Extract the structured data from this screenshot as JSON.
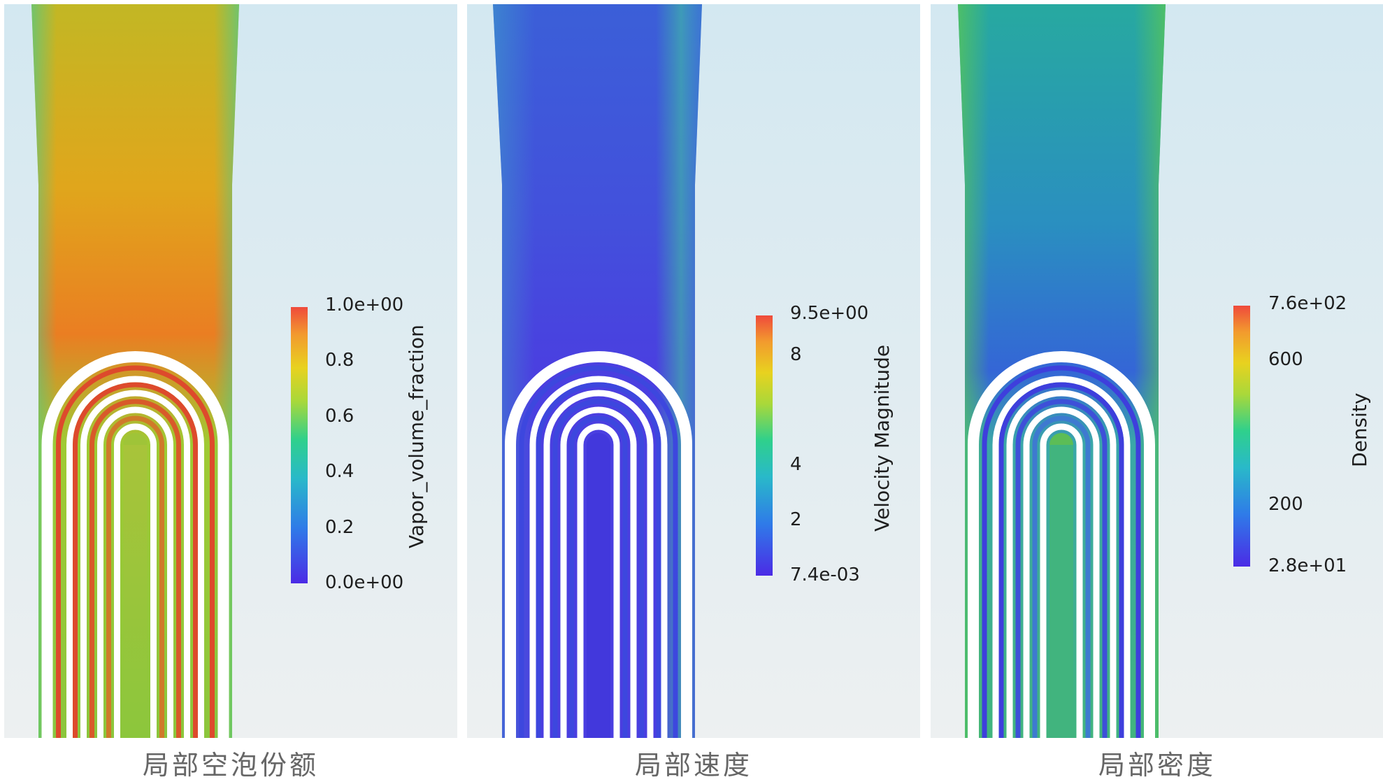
{
  "panels": [
    {
      "caption": "局部空泡份额",
      "colorbar": {
        "title": "Vapor_volume_fraction",
        "max_label": "1.0e+00",
        "min_label": "0.0e+00",
        "ticks": [
          "0.8",
          "0.6",
          "0.4",
          "0.2"
        ]
      }
    },
    {
      "caption": "局部速度",
      "colorbar": {
        "title": "Velocity Magnitude",
        "max_label": "9.5e+00",
        "min_label": "7.4e-03",
        "ticks": [
          "8",
          "4",
          "2"
        ]
      }
    },
    {
      "caption": "局部密度",
      "colorbar": {
        "title": "Density",
        "max_label": "7.6e+02",
        "min_label": "2.8e+01",
        "ticks": [
          "600",
          "200"
        ]
      }
    }
  ],
  "colors": {
    "background_top": "#d3e8f1",
    "background_bottom": "#edf0f1",
    "colormap_low": "#4b2be6",
    "colormap_mid": "#2fd08c",
    "colormap_high": "#ef4a3c"
  }
}
